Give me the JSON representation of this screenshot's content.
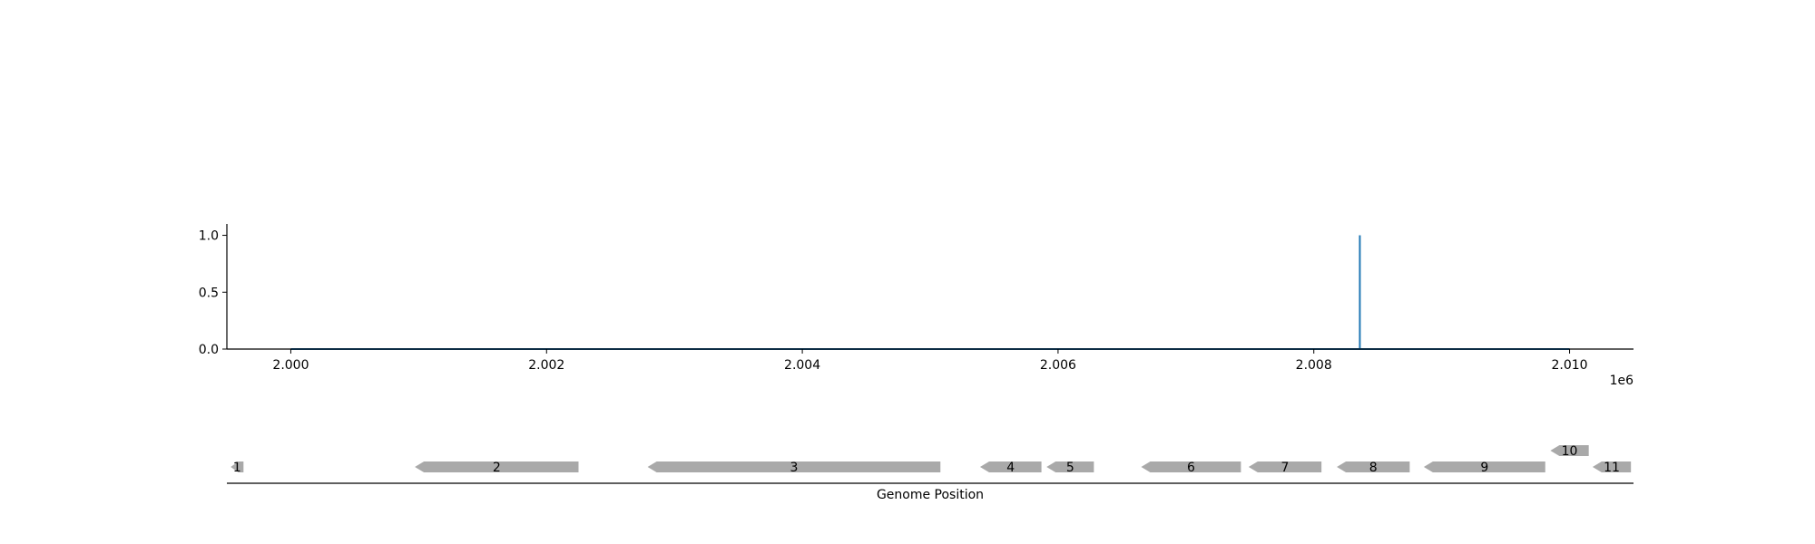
{
  "chart_data": [
    {
      "type": "line",
      "title": "",
      "xlabel": "",
      "ylabel": "",
      "x_offset_label": "1e6",
      "xlim": [
        1.9995,
        2.0105
      ],
      "ylim": [
        0.0,
        1.1
      ],
      "x_ticks": [
        2.0,
        2.002,
        2.004,
        2.006,
        2.008,
        2.01
      ],
      "x_tick_labels": [
        "2.000",
        "2.002",
        "2.004",
        "2.006",
        "2.008",
        "2.010"
      ],
      "y_ticks": [
        0.0,
        0.5,
        1.0
      ],
      "y_tick_labels": [
        "0.0",
        "0.5",
        "1.0"
      ],
      "grid": false,
      "series": [
        {
          "color": "#1f77b4",
          "x": [
            2.0,
            2.00836,
            2.00836,
            2.00836,
            2.01
          ],
          "y": [
            0.0,
            0.0,
            1.0,
            0.0,
            0.0
          ]
        }
      ]
    },
    {
      "type": "gene-track",
      "xlabel": "Genome Position",
      "xlim": [
        1.9995,
        2.0105
      ],
      "color": "#a9a9a9",
      "genes": [
        {
          "label": "1",
          "start": 1.99953,
          "end": 1.99963,
          "strand": "-",
          "row": 0
        },
        {
          "label": "2",
          "start": 2.00097,
          "end": 2.00225,
          "strand": "-",
          "row": 0
        },
        {
          "label": "3",
          "start": 2.00279,
          "end": 2.00508,
          "strand": "-",
          "row": 0
        },
        {
          "label": "4",
          "start": 2.00539,
          "end": 2.00587,
          "strand": "-",
          "row": 0
        },
        {
          "label": "5",
          "start": 2.00591,
          "end": 2.00628,
          "strand": "-",
          "row": 0
        },
        {
          "label": "6",
          "start": 2.00665,
          "end": 2.00743,
          "strand": "-",
          "row": 0
        },
        {
          "label": "7",
          "start": 2.00749,
          "end": 2.00806,
          "strand": "-",
          "row": 0
        },
        {
          "label": "8",
          "start": 2.00818,
          "end": 2.00875,
          "strand": "-",
          "row": 0
        },
        {
          "label": "9",
          "start": 2.00886,
          "end": 2.00981,
          "strand": "-",
          "row": 0
        },
        {
          "label": "10",
          "start": 2.00985,
          "end": 2.01015,
          "strand": "-",
          "row": 1
        },
        {
          "label": "11",
          "start": 2.01018,
          "end": 2.01048,
          "strand": "-",
          "row": 0
        }
      ]
    }
  ]
}
